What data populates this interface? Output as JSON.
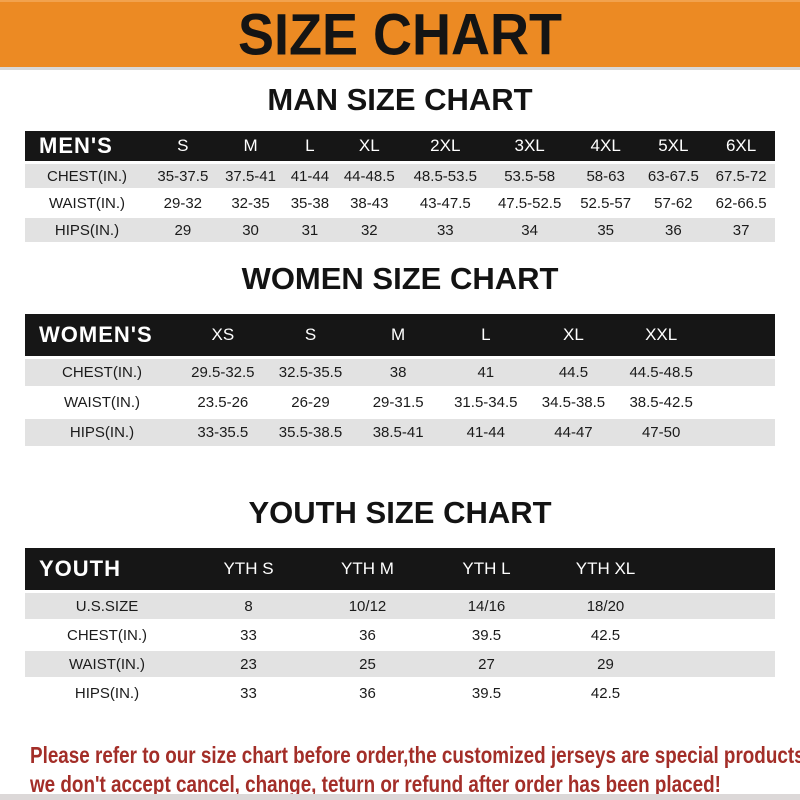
{
  "banner": {
    "title": "SIZE CHART",
    "bg_color": "#EC8A23",
    "text_color": "#141414"
  },
  "colors": {
    "table_header_bg": "#161616",
    "table_row_stripe": "#E2E2E2",
    "notice_red": "#A32E28",
    "bottom_strip": "#DCD8D8"
  },
  "sections": {
    "men": {
      "heading": "MAN SIZE CHART",
      "header": {
        "label": "MEN'S",
        "cols": [
          "S",
          "M",
          "L",
          "XL",
          "2XL",
          "3XL",
          "4XL",
          "5XL",
          "6XL"
        ]
      },
      "rows": [
        {
          "label": "CHEST(IN.)",
          "values": [
            "35-37.5",
            "37.5-41",
            "41-44",
            "44-48.5",
            "48.5-53.5",
            "53.5-58",
            "58-63",
            "63-67.5",
            "67.5-72"
          ]
        },
        {
          "label": "WAIST(IN.)",
          "values": [
            "29-32",
            "32-35",
            "35-38",
            "38-43",
            "43-47.5",
            "47.5-52.5",
            "52.5-57",
            "57-62",
            "62-66.5"
          ]
        },
        {
          "label": "HIPS(IN.)",
          "values": [
            "29",
            "30",
            "31",
            "32",
            "33",
            "34",
            "35",
            "36",
            "37"
          ]
        }
      ]
    },
    "women": {
      "heading": "WOMEN SIZE CHART",
      "header": {
        "label": "WOMEN'S",
        "cols": [
          "XS",
          "S",
          "M",
          "L",
          "XL",
          "XXL"
        ]
      },
      "rows": [
        {
          "label": "CHEST(IN.)",
          "values": [
            "29.5-32.5",
            "32.5-35.5",
            "38",
            "41",
            "44.5",
            "44.5-48.5"
          ]
        },
        {
          "label": "WAIST(IN.)",
          "values": [
            "23.5-26",
            "26-29",
            "29-31.5",
            "31.5-34.5",
            "34.5-38.5",
            "38.5-42.5"
          ]
        },
        {
          "label": "HIPS(IN.)",
          "values": [
            "33-35.5",
            "35.5-38.5",
            "38.5-41",
            "41-44",
            "44-47",
            "47-50"
          ]
        }
      ]
    },
    "youth": {
      "heading": "YOUTH SIZE CHART",
      "header": {
        "label": "YOUTH",
        "cols": [
          "YTH S",
          "YTH M",
          "YTH L",
          "YTH XL"
        ]
      },
      "rows": [
        {
          "label": "U.S.SIZE",
          "values": [
            "8",
            "10/12",
            "14/16",
            "18/20"
          ]
        },
        {
          "label": "CHEST(IN.)",
          "values": [
            "33",
            "36",
            "39.5",
            "42.5"
          ]
        },
        {
          "label": "WAIST(IN.)",
          "values": [
            "23",
            "25",
            "27",
            "29"
          ]
        },
        {
          "label": "HIPS(IN.)",
          "values": [
            "33",
            "36",
            "39.5",
            "42.5"
          ]
        }
      ]
    }
  },
  "notice": {
    "line1": "Please refer to our size chart before order,the customized jerseys are special products,",
    "line2": "we don't accept cancel, change, teturn or refund after order has been placed!"
  }
}
